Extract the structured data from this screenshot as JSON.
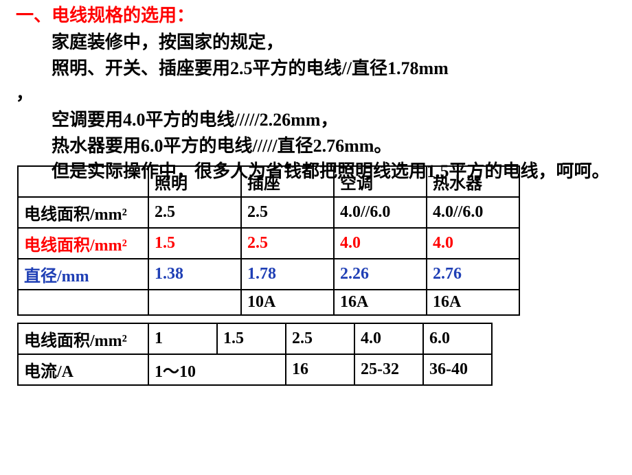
{
  "heading": "一、电线规格的选用：",
  "para1": "家庭装修中，按国家的规定，",
  "para2": "照明、开关、插座要用2.5平方的电线//直径1.78mm",
  "para2b": "，",
  "para3": "空调要用4.0平方的电线/////2.26mm，",
  "para4": "热水器要用6.0平方的电线/////直径2.76mm。",
  "para5": "但是实际操作中，很多人为省钱都把照明线选用1.5平方的电线，呵呵。",
  "table1": {
    "h_blank": "",
    "h1": "照明",
    "h2": "插座",
    "h3": "空调",
    "h4": "热水器",
    "r1_label": "电线面积/mm²",
    "r1": [
      "2.5",
      "2.5",
      "4.0//6.0",
      "4.0//6.0"
    ],
    "r2_label": "电线面积/mm²",
    "r2": [
      "1.5",
      "2.5",
      "4.0",
      "4.0"
    ],
    "r3_label": "直径/mm",
    "r3": [
      "1.38",
      "1.78",
      "2.26",
      "2.76"
    ],
    "r4_label": "",
    "r4": [
      "",
      "10A",
      "16A",
      "16A"
    ]
  },
  "table2": {
    "r1_label": "电线面积/mm²",
    "r1": [
      "1",
      "1.5",
      "2.5",
      "4.0",
      "6.0"
    ],
    "r2_label": "电流/A",
    "r2": [
      "1～10",
      "",
      "16",
      "25-32",
      "36-40"
    ]
  },
  "colors": {
    "heading": "#ff0000",
    "body": "#000000",
    "row_red": "#ff0000",
    "row_blue": "#1f3fb5",
    "border": "#000000",
    "background": "#ffffff"
  },
  "fonts": {
    "family": "SimSun / 宋体",
    "heading_size_pt": 20,
    "body_size_pt": 20,
    "table_size_pt": 18,
    "weight": "bold"
  }
}
